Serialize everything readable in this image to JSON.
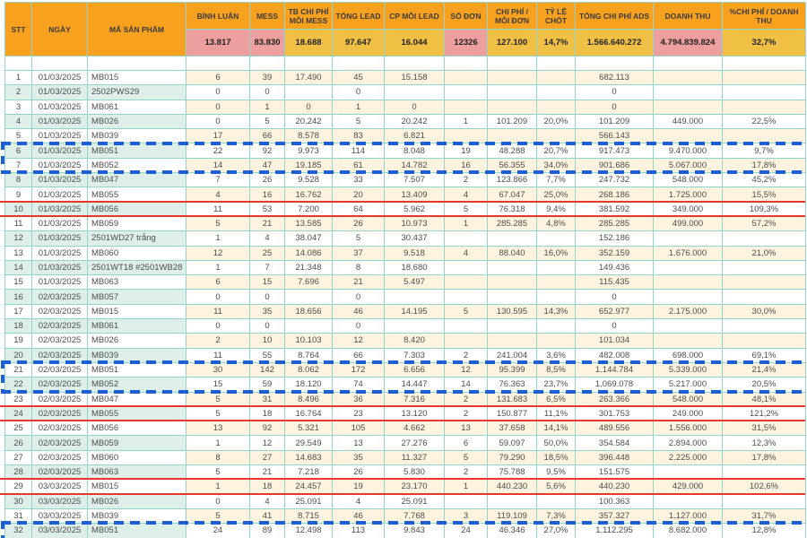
{
  "app": {
    "description": "ads-cost-tracking-spreadsheet"
  },
  "colors": {
    "header_orange": "#f8a11e",
    "summary_pink": "#ec9f9d",
    "summary_gold": "#efc043",
    "row_beige": "#fdf3de",
    "row_green": "#ddefe8",
    "gridline_cyan": "#93d5cd",
    "selection_blue": "#1e5ed4",
    "highlight_red": "#e8382d"
  },
  "table": {
    "columns": [
      {
        "label": "STT",
        "summary": "",
        "summary_style": ""
      },
      {
        "label": "NGÀY",
        "summary": "",
        "summary_style": ""
      },
      {
        "label": "MÃ SẢN PHẨM",
        "summary": "",
        "summary_style": ""
      },
      {
        "label": "BÌNH LUẬN",
        "summary": "13.817",
        "summary_style": "pink"
      },
      {
        "label": "MESS",
        "summary": "83.830",
        "summary_style": "pink"
      },
      {
        "label": "TB CHI PHÍ MỖI MESS",
        "summary": "18.688",
        "summary_style": "gold"
      },
      {
        "label": "TỔNG LEAD",
        "summary": "97.647",
        "summary_style": "gold"
      },
      {
        "label": "CP MỖI LEAD",
        "summary": "16.044",
        "summary_style": "gold"
      },
      {
        "label": "SỐ ĐƠN",
        "summary": "12326",
        "summary_style": "pink"
      },
      {
        "label": "CHI PHÍ / MỖI ĐƠN",
        "summary": "127.100",
        "summary_style": "gold"
      },
      {
        "label": "TỶ LỆ CHỐT",
        "summary": "14,7%",
        "summary_style": "gold"
      },
      {
        "label": "TỔNG CHI PHÍ ADS",
        "summary": "1.566.640.272",
        "summary_style": "gold"
      },
      {
        "label": "DOANH THU",
        "summary": "4.794.839.824",
        "summary_style": "pink"
      },
      {
        "label": "%CHI PHÍ / DOANH THU",
        "summary": "32,7%",
        "summary_style": "gold"
      }
    ],
    "rows": [
      [
        "1",
        "01/03/2025",
        "MB015",
        "6",
        "39",
        "17.490",
        "45",
        "15.158",
        "",
        "",
        "",
        "682.113",
        "",
        ""
      ],
      [
        "2",
        "01/03/2025",
        "2502PWS29",
        "0",
        "0",
        "",
        "0",
        "",
        "",
        "",
        "",
        "0",
        "",
        ""
      ],
      [
        "3",
        "01/03/2025",
        "MB061",
        "0",
        "1",
        "0",
        "1",
        "0",
        "",
        "",
        "",
        "0",
        "",
        ""
      ],
      [
        "4",
        "01/03/2025",
        "MB026",
        "0",
        "5",
        "20.242",
        "5",
        "20.242",
        "1",
        "101.209",
        "20,0%",
        "101.209",
        "449.000",
        "22,5%"
      ],
      [
        "5",
        "01/03/2025",
        "MB039",
        "17",
        "66",
        "8.578",
        "83",
        "6.821",
        "",
        "",
        "",
        "566.143",
        "",
        ""
      ],
      [
        "6",
        "01/03/2025",
        "MB051",
        "22",
        "92",
        "9.973",
        "114",
        "8.048",
        "19",
        "48.288",
        "20,7%",
        "917.473",
        "9.470.000",
        "9,7%"
      ],
      [
        "7",
        "01/03/2025",
        "MB052",
        "14",
        "47",
        "19.185",
        "61",
        "14.782",
        "16",
        "56.355",
        "34,0%",
        "901.686",
        "5.067.000",
        "17,8%"
      ],
      [
        "8",
        "01/03/2025",
        "MB047",
        "7",
        "26",
        "9.528",
        "33",
        "7.507",
        "2",
        "123.866",
        "7,7%",
        "247.732",
        "548.000",
        "45,2%"
      ],
      [
        "9",
        "01/03/2025",
        "MB055",
        "4",
        "16",
        "16.762",
        "20",
        "13.409",
        "4",
        "67.047",
        "25,0%",
        "268.186",
        "1.725.000",
        "15,5%"
      ],
      [
        "10",
        "01/03/2025",
        "MB056",
        "11",
        "53",
        "7.200",
        "64",
        "5.962",
        "5",
        "76.318",
        "9,4%",
        "381.592",
        "349.000",
        "109,3%"
      ],
      [
        "11",
        "01/03/2025",
        "MB059",
        "5",
        "21",
        "13.585",
        "26",
        "10.973",
        "1",
        "285.285",
        "4,8%",
        "285.285",
        "499.000",
        "57,2%"
      ],
      [
        "12",
        "01/03/2025",
        "2501WD27 trắng",
        "1",
        "4",
        "38.047",
        "5",
        "30.437",
        "",
        "",
        "",
        "152.186",
        "",
        ""
      ],
      [
        "13",
        "01/03/2025",
        "MB060",
        "12",
        "25",
        "14.086",
        "37",
        "9.518",
        "4",
        "88.040",
        "16,0%",
        "352.159",
        "1.676.000",
        "21,0%"
      ],
      [
        "14",
        "01/03/2025",
        "2501WT18 #2501WB28",
        "1",
        "7",
        "21.348",
        "8",
        "18.680",
        "",
        "",
        "",
        "149.436",
        "",
        ""
      ],
      [
        "15",
        "01/03/2025",
        "MB063",
        "6",
        "15",
        "7.696",
        "21",
        "5.497",
        "",
        "",
        "",
        "115.435",
        "",
        ""
      ],
      [
        "16",
        "02/03/2025",
        "MB057",
        "0",
        "0",
        "",
        "0",
        "",
        "",
        "",
        "",
        "0",
        "",
        ""
      ],
      [
        "17",
        "02/03/2025",
        "MB015",
        "11",
        "35",
        "18.656",
        "46",
        "14.195",
        "5",
        "130.595",
        "14,3%",
        "652.977",
        "2.175.000",
        "30,0%"
      ],
      [
        "18",
        "02/03/2025",
        "MB061",
        "0",
        "0",
        "",
        "0",
        "",
        "",
        "",
        "",
        "0",
        "",
        ""
      ],
      [
        "19",
        "02/03/2025",
        "MB026",
        "2",
        "10",
        "10.103",
        "12",
        "8.420",
        "",
        "",
        "",
        "101.034",
        "",
        ""
      ],
      [
        "20",
        "02/03/2025",
        "MB039",
        "11",
        "55",
        "8.764",
        "66",
        "7.303",
        "2",
        "241.004",
        "3,6%",
        "482.008",
        "698.000",
        "69,1%"
      ],
      [
        "21",
        "02/03/2025",
        "MB051",
        "30",
        "142",
        "8.062",
        "172",
        "6.656",
        "12",
        "95.399",
        "8,5%",
        "1.144.784",
        "5.339.000",
        "21,4%"
      ],
      [
        "22",
        "02/03/2025",
        "MB052",
        "15",
        "59",
        "18.120",
        "74",
        "14.447",
        "14",
        "76.363",
        "23,7%",
        "1.069.078",
        "5.217.000",
        "20,5%"
      ],
      [
        "23",
        "02/03/2025",
        "MB047",
        "5",
        "31",
        "8.496",
        "36",
        "7.316",
        "2",
        "131.683",
        "6,5%",
        "263.366",
        "548.000",
        "48,1%"
      ],
      [
        "24",
        "02/03/2025",
        "MB055",
        "5",
        "18",
        "16.764",
        "23",
        "13.120",
        "2",
        "150.877",
        "11,1%",
        "301.753",
        "249.000",
        "121,2%"
      ],
      [
        "25",
        "02/03/2025",
        "MB056",
        "13",
        "92",
        "5.321",
        "105",
        "4.662",
        "13",
        "37.658",
        "14,1%",
        "489.556",
        "1.556.000",
        "31,5%"
      ],
      [
        "26",
        "02/03/2025",
        "MB059",
        "1",
        "12",
        "29.549",
        "13",
        "27.276",
        "6",
        "59.097",
        "50,0%",
        "354.584",
        "2.894.000",
        "12,3%"
      ],
      [
        "27",
        "02/03/2025",
        "MB060",
        "8",
        "27",
        "14.683",
        "35",
        "11.327",
        "5",
        "79.290",
        "18,5%",
        "396.448",
        "2.225.000",
        "17,8%"
      ],
      [
        "28",
        "02/03/2025",
        "MB063",
        "5",
        "21",
        "7.218",
        "26",
        "5.830",
        "2",
        "75.788",
        "9,5%",
        "151.575",
        "",
        ""
      ],
      [
        "29",
        "03/03/2025",
        "MB015",
        "1",
        "18",
        "24.457",
        "19",
        "23.170",
        "1",
        "440.230",
        "5,6%",
        "440.230",
        "429.000",
        "102,6%"
      ],
      [
        "30",
        "03/03/2025",
        "MB026",
        "0",
        "4",
        "25.091",
        "4",
        "25.091",
        "",
        "",
        "",
        "100.363",
        "",
        ""
      ],
      [
        "31",
        "03/03/2025",
        "MB039",
        "5",
        "41",
        "8.715",
        "46",
        "7.768",
        "3",
        "119.109",
        "7,3%",
        "357.327",
        "1.127.000",
        "31,7%"
      ],
      [
        "32",
        "03/03/2025",
        "MB051",
        "24",
        "89",
        "12.498",
        "113",
        "9.843",
        "24",
        "46.346",
        "27,0%",
        "1.112.295",
        "8.682.000",
        "12,8%"
      ]
    ],
    "highlights": {
      "blue_selection_row_ranges": [
        [
          6,
          7
        ],
        [
          21,
          22
        ],
        [
          32,
          33
        ]
      ],
      "red_highlight_row_ranges": [
        [
          10,
          10
        ],
        [
          24,
          24
        ],
        [
          29,
          29
        ]
      ]
    }
  }
}
